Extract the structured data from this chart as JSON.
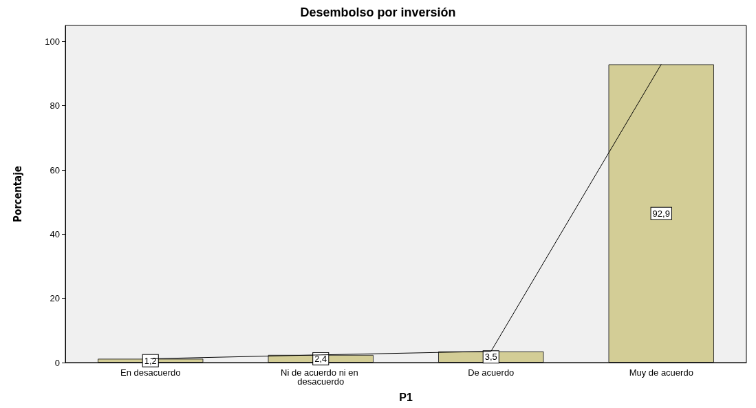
{
  "chart_data": {
    "type": "bar",
    "title": "Desembolso por inversión",
    "xlabel": "P1",
    "ylabel": "Porcentaje",
    "categories": [
      "En desacuerdo",
      "Ni de acuerdo ni en desacuerdo",
      "De acuerdo",
      "Muy de acuerdo"
    ],
    "series": [
      {
        "color": "#d3cd96",
        "values": [
          1.2,
          2.4,
          3.5,
          92.9
        ],
        "value_labels": [
          "1,2",
          "2,4",
          "3,5",
          "92,9"
        ]
      },
      {
        "type": "line",
        "color": "#000000",
        "values": [
          1.2,
          2.4,
          3.5,
          92.9
        ]
      }
    ],
    "ylim": [
      0,
      105
    ],
    "yticks": [
      0,
      20,
      40,
      60,
      80,
      100
    ],
    "grid": false,
    "marker": "none"
  }
}
